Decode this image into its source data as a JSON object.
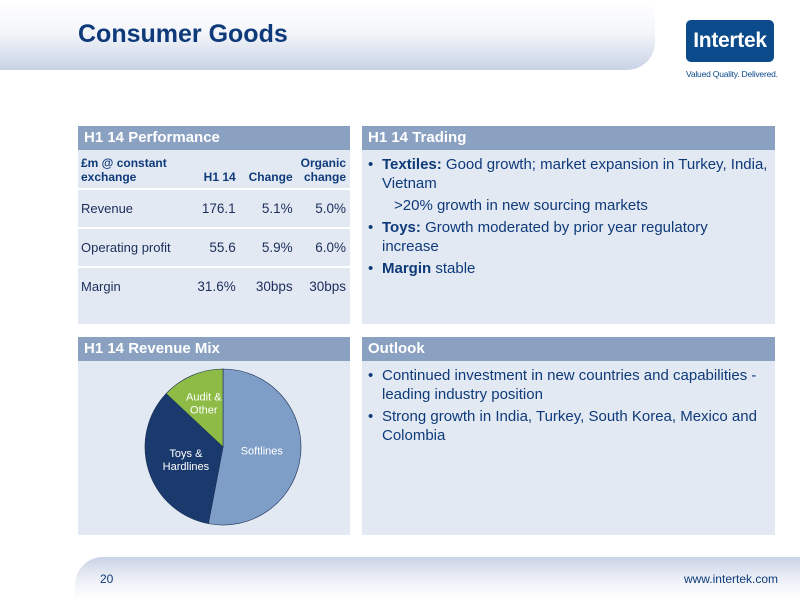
{
  "page": {
    "title": "Consumer Goods",
    "page_number": "20",
    "website": "www.intertek.com"
  },
  "logo": {
    "name": "Intertek",
    "tagline": "Valued Quality. Delivered."
  },
  "colors": {
    "title": "#0e3a7a",
    "panel_header": "#8aa1c1",
    "panel_bg": "#e3e9f2",
    "logo": "#0b4a8b",
    "pie_softlines": "#7f9ec7",
    "pie_toys": "#1a3a6e",
    "pie_audit": "#8dbb45"
  },
  "performance": {
    "heading": "H1 14 Performance",
    "columns": [
      "£m @ constant exchange",
      "H1 14",
      "Change",
      "Organic change"
    ],
    "rows": [
      {
        "label": "Revenue",
        "h1": "176.1",
        "change": "5.1%",
        "organic": "5.0%"
      },
      {
        "label": "Operating profit",
        "h1": "55.6",
        "change": "5.9%",
        "organic": "6.0%"
      },
      {
        "label": "Margin",
        "h1": "31.6%",
        "change": "30bps",
        "organic": "30bps"
      }
    ]
  },
  "trading": {
    "heading": "H1 14 Trading",
    "bullets": [
      {
        "strong": "Textiles:",
        "text": " Good growth; market expansion in Turkey, India, Vietnam"
      },
      {
        "sub": ">20% growth in new sourcing markets"
      },
      {
        "strong": "Toys:",
        "text": " Growth moderated by prior year regulatory increase"
      },
      {
        "strong": "Margin",
        "text": " stable"
      }
    ]
  },
  "revenue_mix": {
    "heading": "H1 14 Revenue Mix"
  },
  "chart_data": {
    "type": "pie",
    "categories": [
      "Softlines",
      "Toys & Hardlines",
      "Audit & Other"
    ],
    "values": [
      53,
      34,
      13
    ],
    "legend": false
  },
  "outlook": {
    "heading": "Outlook",
    "bullets": [
      {
        "text": "Continued investment in new countries and capabilities - leading industry position"
      },
      {
        "text": "Strong growth in India, Turkey, South Korea, Mexico and Colombia"
      }
    ]
  }
}
